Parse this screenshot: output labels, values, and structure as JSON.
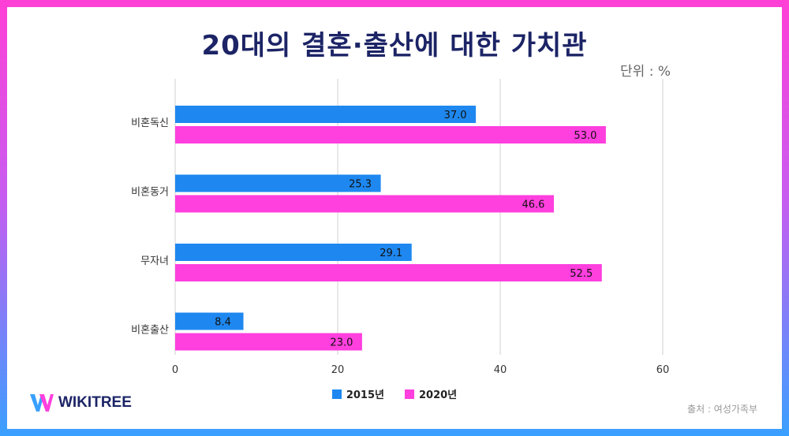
{
  "title": "20대의 결혼·출산에 대한 가치관",
  "unit": "단위 : %",
  "source": "출처 : 여성가족부",
  "brand": "WIKITREE",
  "colors": {
    "s2015": "#1e88f0",
    "s2020": "#ff3fde",
    "title": "#1c2466"
  },
  "chart_data": {
    "type": "bar",
    "orientation": "horizontal",
    "categories": [
      "비혼독신",
      "비혼동거",
      "무자녀",
      "비혼출산"
    ],
    "series": [
      {
        "name": "2015년",
        "values": [
          37.0,
          25.3,
          29.1,
          8.4
        ]
      },
      {
        "name": "2020년",
        "values": [
          53.0,
          46.6,
          52.5,
          23.0
        ]
      }
    ],
    "xlim": [
      0,
      60
    ],
    "xticks": [
      "0",
      "20",
      "40",
      "60"
    ],
    "data_labels": [
      [
        "37.0",
        "25.3",
        "29.1",
        "8.4"
      ],
      [
        "53.0",
        "46.6",
        "52.5",
        "23.0"
      ]
    ],
    "grid": true,
    "legend_position": "bottom"
  }
}
